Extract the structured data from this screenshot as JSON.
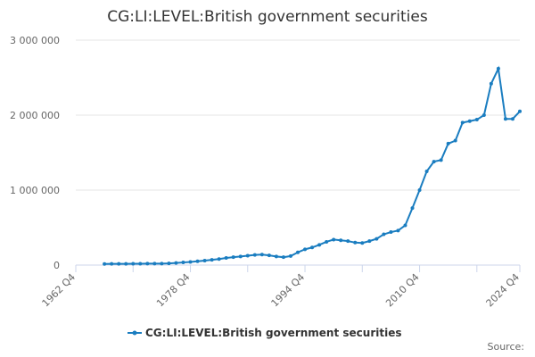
{
  "chart_data": {
    "type": "line",
    "title": "CG:LI:LEVEL:British government securities",
    "source": "Source:",
    "categories": [
      "1962 Q4",
      null,
      null,
      null,
      null,
      null,
      null,
      null,
      null,
      null,
      null,
      null,
      null,
      null,
      null,
      null,
      "1978 Q4",
      null,
      null,
      null,
      null,
      null,
      null,
      null,
      null,
      null,
      null,
      null,
      null,
      null,
      null,
      null,
      "1994 Q4",
      null,
      null,
      null,
      null,
      null,
      null,
      null,
      null,
      null,
      null,
      null,
      null,
      null,
      null,
      null,
      "2010 Q4",
      null,
      null,
      null,
      null,
      null,
      null,
      null,
      null,
      null,
      null,
      null,
      null,
      null,
      "2024 Q4"
    ],
    "series": [
      {
        "name": "CG:LI:LEVEL:British government securities",
        "color": "#1a7dc0",
        "values": [
          null,
          null,
          null,
          null,
          15000,
          16000,
          17000,
          17000,
          18000,
          18000,
          19000,
          19000,
          20000,
          22000,
          28000,
          35000,
          42000,
          50000,
          60000,
          70000,
          80000,
          95000,
          105000,
          115000,
          125000,
          135000,
          140000,
          130000,
          115000,
          105000,
          120000,
          170000,
          210000,
          235000,
          270000,
          310000,
          340000,
          330000,
          320000,
          300000,
          295000,
          320000,
          350000,
          410000,
          440000,
          460000,
          530000,
          760000,
          1000000,
          1250000,
          1380000,
          1400000,
          1620000,
          1660000,
          1900000,
          1920000,
          1940000,
          2000000,
          2420000,
          2620000,
          1950000,
          1950000,
          2050000
        ]
      }
    ],
    "ylim": [
      0,
      3000000
    ],
    "yticks": [
      0,
      {
        "value": 1000000,
        "label": "1 000 000"
      },
      {
        "value": 2000000,
        "label": "2 000 000"
      },
      {
        "value": 3000000,
        "label": "3 000 000"
      }
    ],
    "grid": true
  }
}
